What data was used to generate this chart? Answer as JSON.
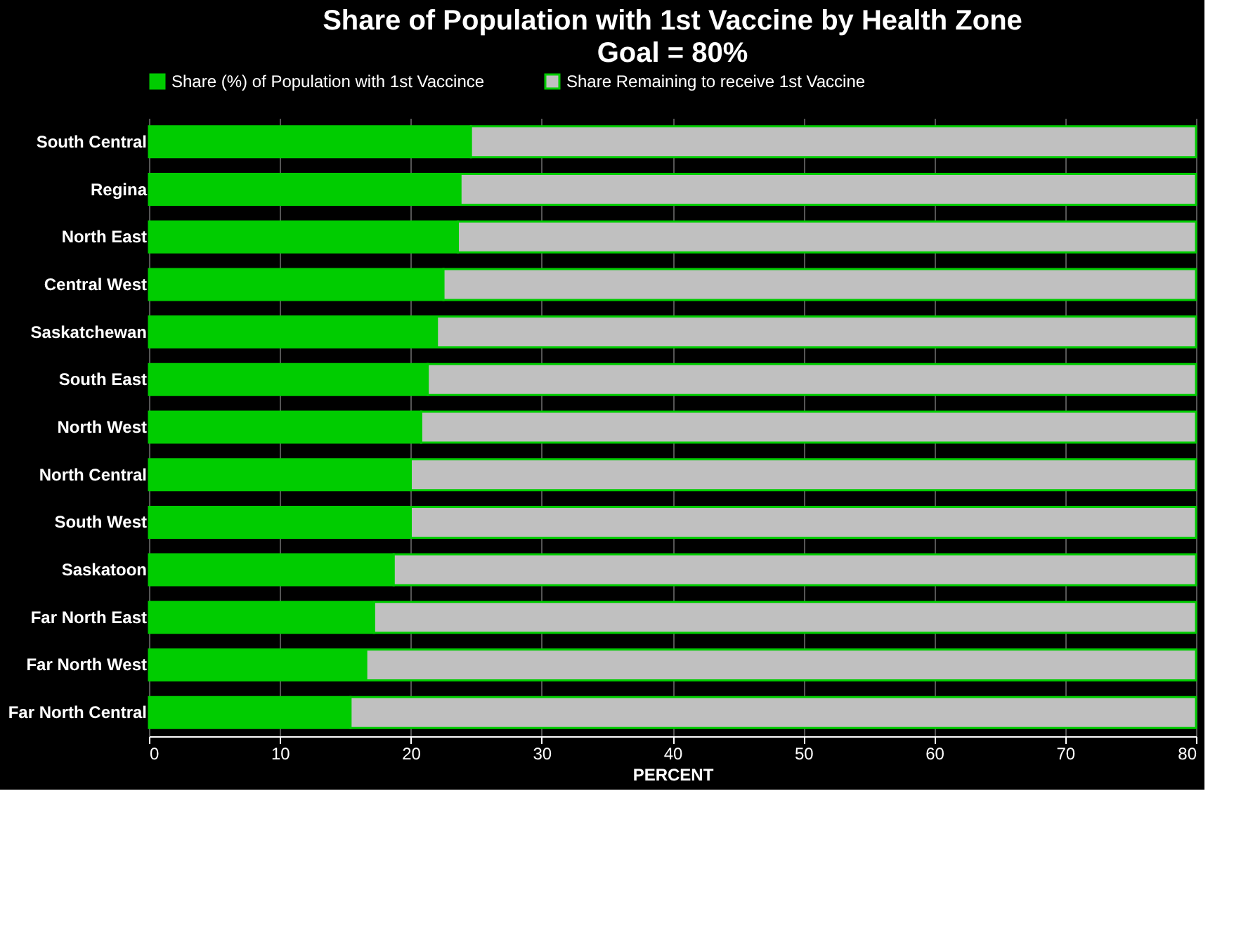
{
  "chart_data": {
    "type": "bar",
    "orientation": "horizontal",
    "stacked": true,
    "title": "Share of Population with 1st Vaccine by Health Zone",
    "subtitle": "Goal = 80%",
    "xlabel": "PERCENT",
    "categories": [
      "South Central",
      "Regina",
      "North East",
      "Central West",
      "Saskatchewan",
      "South East",
      "North West",
      "North Central",
      "South West",
      "Saskatoon",
      "Far North East",
      "Far North West",
      "Far North Central"
    ],
    "series": [
      {
        "name": "Share (%) of Population with 1st Vaccince",
        "color": "#00cc00",
        "values": [
          24.6,
          23.8,
          23.6,
          22.5,
          22.0,
          21.3,
          20.8,
          20.0,
          20.0,
          18.7,
          17.2,
          16.6,
          15.4
        ]
      },
      {
        "name": "Share Remaining to receive 1st Vaccine",
        "color": "#c0c0c0",
        "values": [
          55.4,
          56.2,
          56.4,
          57.5,
          58.0,
          58.7,
          59.2,
          60.0,
          60.0,
          61.3,
          62.8,
          63.4,
          64.6
        ]
      }
    ],
    "xlim": [
      0,
      80
    ],
    "xticks": [
      0,
      10,
      20,
      30,
      40,
      50,
      60,
      70,
      80
    ],
    "grid": "x",
    "legend": "top"
  }
}
